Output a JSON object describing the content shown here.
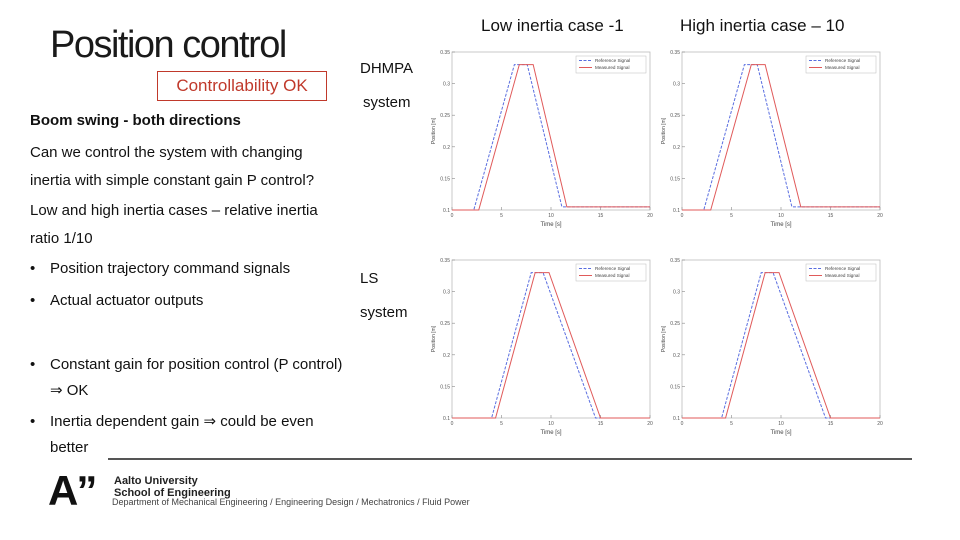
{
  "slide": {
    "title": "Position control",
    "badge": "Controllability OK",
    "subtitle": "Boom swing - both directions",
    "para1": "Can we control the system with changing inertia with simple constant gain P control?",
    "para2": "Low and high inertia cases – relative inertia ratio 1/10",
    "bullets": [
      {
        "mark": "•",
        "text": "Position trajectory command signals"
      },
      {
        "mark": "•",
        "text": "Actual actuator outputs"
      },
      {
        "mark": "•",
        "text": "Constant gain for position control (P control) ⇒ OK"
      },
      {
        "mark": "•",
        "text": "Inertia dependent gain ⇒ could be even better"
      }
    ],
    "col_low": "Low inertia case -1",
    "col_high": "High inertia case – 10",
    "row1_label_a": "DHMPA",
    "row1_label_b": "system",
    "row2_label_a": "LS",
    "row2_label_b": "system"
  },
  "footer": {
    "logo_mark": "A”",
    "university": "Aalto University",
    "school": "School of Engineering",
    "department": "Department of Mechanical Engineering / Engineering Design / Mechatronics / Fluid Power"
  },
  "chart_data": [
    {
      "type": "line",
      "id": "dhmpa-low",
      "xlabel": "Time [s]",
      "ylabel": "Position [m]",
      "xlim": [
        0,
        20
      ],
      "ylim": [
        0.1,
        0.35
      ],
      "xticks": [
        "0",
        "5",
        "10",
        "15",
        "20"
      ],
      "yticks": [
        "0.1",
        "0.15",
        "0.2",
        "0.25",
        "0.3",
        "0.35"
      ],
      "legend": "top-right",
      "series": [
        {
          "name": "Reference Signal",
          "color": "#5a6ee0",
          "x": [
            0,
            2.2,
            6.3,
            7.6,
            11.1,
            20
          ],
          "y": [
            0.1,
            0.1,
            0.33,
            0.33,
            0.105,
            0.105
          ]
        },
        {
          "name": "Measured Signal",
          "color": "#e05a5a",
          "x": [
            0,
            2.7,
            6.8,
            8.2,
            11.6,
            20
          ],
          "y": [
            0.1,
            0.1,
            0.33,
            0.33,
            0.105,
            0.105
          ]
        }
      ]
    },
    {
      "type": "line",
      "id": "dhmpa-high",
      "xlabel": "Time [s]",
      "ylabel": "Position [m]",
      "xlim": [
        0,
        20
      ],
      "ylim": [
        0.1,
        0.35
      ],
      "xticks": [
        "0",
        "5",
        "10",
        "15",
        "20"
      ],
      "yticks": [
        "0.1",
        "0.15",
        "0.2",
        "0.25",
        "0.3",
        "0.35"
      ],
      "legend": "top-right",
      "series": [
        {
          "name": "Reference Signal",
          "color": "#5a6ee0",
          "x": [
            0,
            2.2,
            6.3,
            7.6,
            11.1,
            20
          ],
          "y": [
            0.1,
            0.1,
            0.33,
            0.33,
            0.105,
            0.105
          ]
        },
        {
          "name": "Measured Signal",
          "color": "#e05a5a",
          "x": [
            0,
            2.9,
            7.0,
            8.4,
            12.0,
            20
          ],
          "y": [
            0.1,
            0.1,
            0.33,
            0.33,
            0.105,
            0.105
          ]
        }
      ]
    },
    {
      "type": "line",
      "id": "ls-low",
      "xlabel": "Time [s]",
      "ylabel": "Position [m]",
      "xlim": [
        0,
        20
      ],
      "ylim": [
        0.1,
        0.35
      ],
      "xticks": [
        "0",
        "5",
        "10",
        "15",
        "20"
      ],
      "yticks": [
        "0.1",
        "0.15",
        "0.2",
        "0.25",
        "0.3",
        "0.35"
      ],
      "legend": "top-right",
      "series": [
        {
          "name": "Reference Signal",
          "color": "#5a6ee0",
          "x": [
            0,
            4.0,
            8.0,
            9.2,
            14.5,
            20
          ],
          "y": [
            0.1,
            0.1,
            0.33,
            0.33,
            0.1,
            0.1
          ]
        },
        {
          "name": "Measured Signal",
          "color": "#e05a5a",
          "x": [
            0,
            4.4,
            8.4,
            9.8,
            15.0,
            20
          ],
          "y": [
            0.1,
            0.1,
            0.33,
            0.33,
            0.1,
            0.1
          ]
        }
      ]
    },
    {
      "type": "line",
      "id": "ls-high",
      "xlabel": "Time [s]",
      "ylabel": "Position [m]",
      "xlim": [
        0,
        20
      ],
      "ylim": [
        0.1,
        0.35
      ],
      "xticks": [
        "0",
        "5",
        "10",
        "15",
        "20"
      ],
      "yticks": [
        "0.1",
        "0.15",
        "0.2",
        "0.25",
        "0.3",
        "0.35"
      ],
      "legend": "top-right",
      "series": [
        {
          "name": "Reference Signal",
          "color": "#5a6ee0",
          "x": [
            0,
            4.0,
            8.0,
            9.2,
            14.5,
            20
          ],
          "y": [
            0.1,
            0.1,
            0.33,
            0.33,
            0.1,
            0.1
          ]
        },
        {
          "name": "Measured Signal",
          "color": "#e05a5a",
          "x": [
            0,
            4.4,
            8.4,
            9.8,
            15.0,
            20
          ],
          "y": [
            0.1,
            0.1,
            0.33,
            0.33,
            0.1,
            0.1
          ]
        }
      ]
    }
  ]
}
